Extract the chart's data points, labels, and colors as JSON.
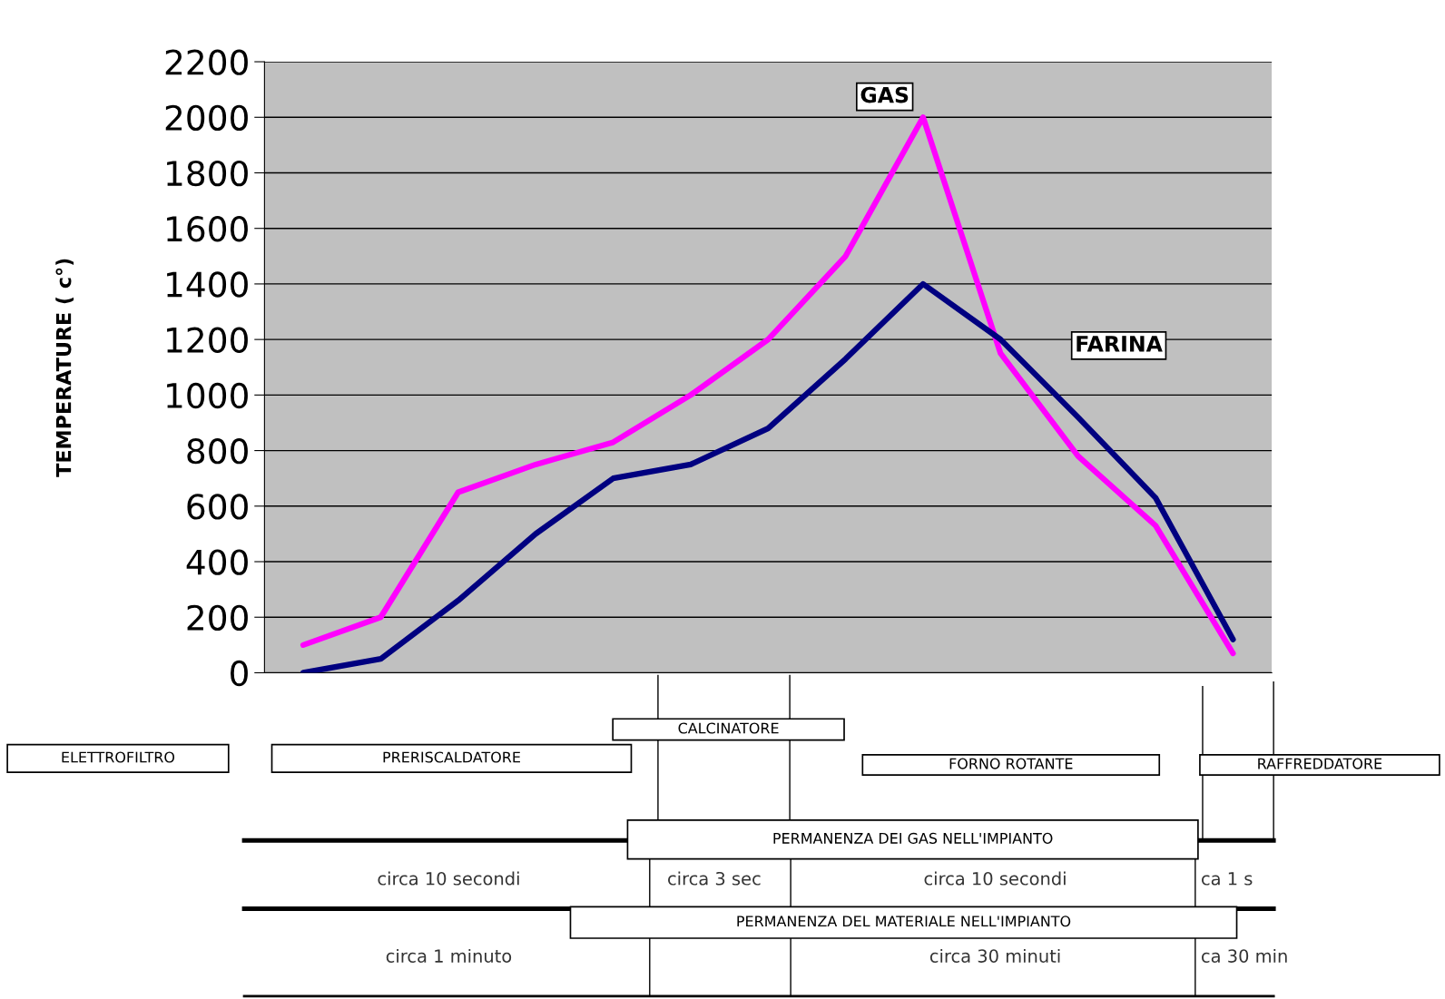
{
  "chart_data": {
    "type": "line",
    "ylabel": "TEMPERATURE ( c°)",
    "categories": [
      null,
      null,
      null,
      null,
      null,
      null,
      null,
      null,
      null,
      null,
      null,
      null,
      null
    ],
    "series": [
      {
        "name": "GAS",
        "color": "#ff00ff",
        "values": [
          100,
          200,
          650,
          750,
          830,
          1000,
          1200,
          1500,
          2000,
          1150,
          780,
          530,
          70
        ]
      },
      {
        "name": "FARINA",
        "color": "#000080",
        "values": [
          0,
          50,
          260,
          500,
          700,
          750,
          880,
          1130,
          1400,
          1200,
          920,
          630,
          120
        ]
      }
    ],
    "ylim": [
      0,
      2200
    ],
    "yticks": [
      0,
      200,
      400,
      600,
      800,
      1000,
      1200,
      1400,
      1600,
      1800,
      2000,
      2200
    ],
    "grid": "y",
    "legend": false,
    "marker": "none",
    "line_style": "solid",
    "tick_labels": "y",
    "annotations": [
      "ELETTROFILTRO",
      "PRERISCALDATORE",
      "CALCINATORE",
      "FORNO ROTANTE",
      "RAFFREDDATORE",
      "PERMANENZA DEI GAS NELL'IMPIANTO",
      "circa 10 secondi",
      "circa 3 sec",
      "circa 10 secondi",
      "ca 1 s",
      "PERMANENZA DEL MATERIALE NELL'IMPIANTO",
      "circa 1 minuto",
      "circa 30 minuti",
      "ca 30 min"
    ]
  }
}
